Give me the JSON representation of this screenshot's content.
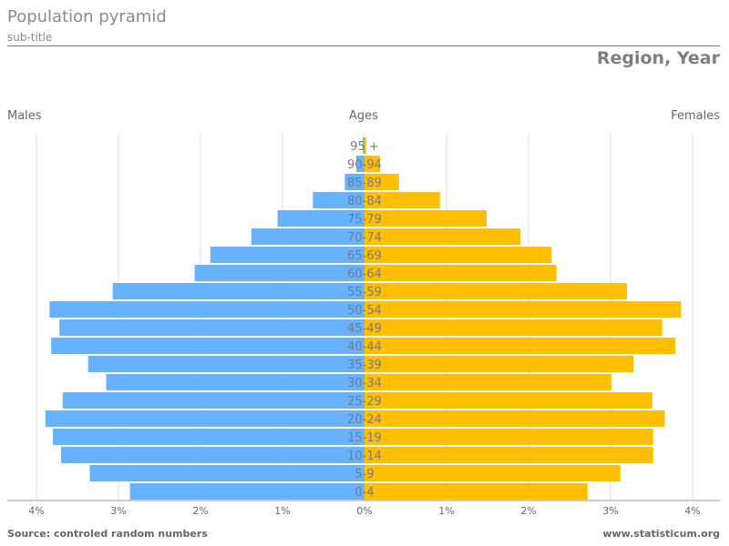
{
  "header": {
    "title": "Population pyramid",
    "subtitle": "sub-title",
    "region": "Region, Year"
  },
  "labels": {
    "left": "Males",
    "center": "Ages",
    "right": "Females"
  },
  "footer": {
    "source": "Source: controled random numbers",
    "site": "www.statisticum.org"
  },
  "colors": {
    "males": "#66b2ff",
    "females": "#ffbf00",
    "grid": "#dddddd",
    "axis": "#999999"
  },
  "chart_data": {
    "type": "bar",
    "orientation": "horizontal-pyramid",
    "categories": [
      "95 +",
      "90-94",
      "85-89",
      "80-84",
      "75-79",
      "70-74",
      "65-69",
      "60-64",
      "55-59",
      "50-54",
      "45-49",
      "40-44",
      "35-39",
      "30-34",
      "25-29",
      "20-24",
      "15-19",
      "10-14",
      "5-9",
      "0-4"
    ],
    "series": [
      {
        "name": "Males",
        "values": [
          0.02,
          0.1,
          0.24,
          0.63,
          1.06,
          1.38,
          1.88,
          2.07,
          3.07,
          3.84,
          3.72,
          3.82,
          3.37,
          3.15,
          3.68,
          3.89,
          3.8,
          3.7,
          3.35,
          2.86
        ]
      },
      {
        "name": "Females",
        "values": [
          0.02,
          0.19,
          0.42,
          0.92,
          1.49,
          1.9,
          2.28,
          2.34,
          3.2,
          3.86,
          3.63,
          3.79,
          3.28,
          3.01,
          3.51,
          3.66,
          3.52,
          3.52,
          3.12,
          2.72
        ]
      }
    ],
    "xlim": [
      -4,
      4
    ],
    "x_ticks": [
      "4%",
      "3%",
      "2%",
      "1%",
      "0%",
      "1%",
      "2%",
      "3%",
      "4%"
    ],
    "grid": true,
    "legend": "none"
  }
}
